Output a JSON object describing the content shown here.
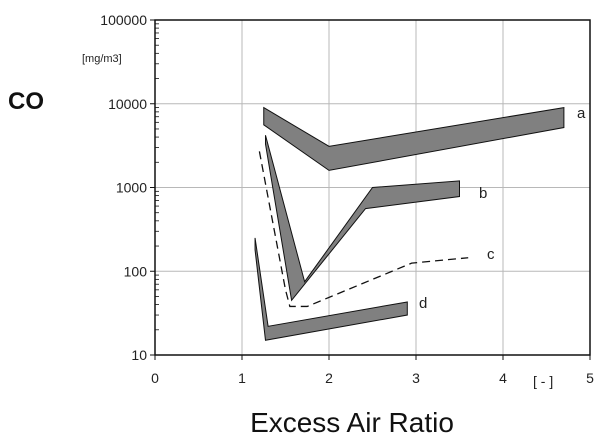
{
  "chart_data": {
    "type": "line",
    "ylabel": "CO",
    "yunit": "[mg/m3]",
    "xlabel": "Excess Air Ratio",
    "xunit": "[ - ]",
    "xlim": [
      0,
      5
    ],
    "ylim": [
      10,
      100000
    ],
    "yscale": "log",
    "grid": true,
    "x_ticks": [
      0,
      1,
      2,
      3,
      4,
      5
    ],
    "x_tick_labels": [
      "0",
      "1",
      "2",
      "3",
      "4",
      "5"
    ],
    "y_ticks": [
      10,
      100,
      1000,
      10000,
      100000
    ],
    "y_tick_labels": [
      "10",
      "100",
      "1000",
      "10000",
      "100000"
    ],
    "series": [
      {
        "name": "a",
        "style": "band",
        "color": "#808080",
        "upper": [
          [
            1.25,
            9000
          ],
          [
            2.0,
            3100
          ],
          [
            4.7,
            9000
          ]
        ],
        "lower": [
          [
            1.25,
            5600
          ],
          [
            2.0,
            1600
          ],
          [
            4.7,
            5200
          ]
        ]
      },
      {
        "name": "b",
        "style": "band",
        "color": "#808080",
        "upper": [
          [
            1.27,
            4200
          ],
          [
            1.72,
            75
          ],
          [
            2.5,
            1000
          ],
          [
            3.5,
            1200
          ]
        ],
        "lower": [
          [
            1.27,
            3300
          ],
          [
            1.57,
            45
          ],
          [
            2.42,
            560
          ],
          [
            3.5,
            780
          ]
        ]
      },
      {
        "name": "c",
        "style": "dashed",
        "color": "#111111",
        "points": [
          [
            1.2,
            2700
          ],
          [
            1.5,
            60
          ],
          [
            1.55,
            38
          ],
          [
            1.75,
            38
          ],
          [
            2.5,
            80
          ],
          [
            2.95,
            125
          ],
          [
            3.6,
            145
          ]
        ]
      },
      {
        "name": "d",
        "style": "band",
        "color": "#808080",
        "upper": [
          [
            1.15,
            250
          ],
          [
            1.3,
            22
          ],
          [
            2.9,
            43
          ]
        ],
        "lower": [
          [
            1.15,
            180
          ],
          [
            1.27,
            15
          ],
          [
            2.9,
            30
          ]
        ]
      }
    ],
    "labels": [
      "a",
      "b",
      "c",
      "d"
    ]
  }
}
